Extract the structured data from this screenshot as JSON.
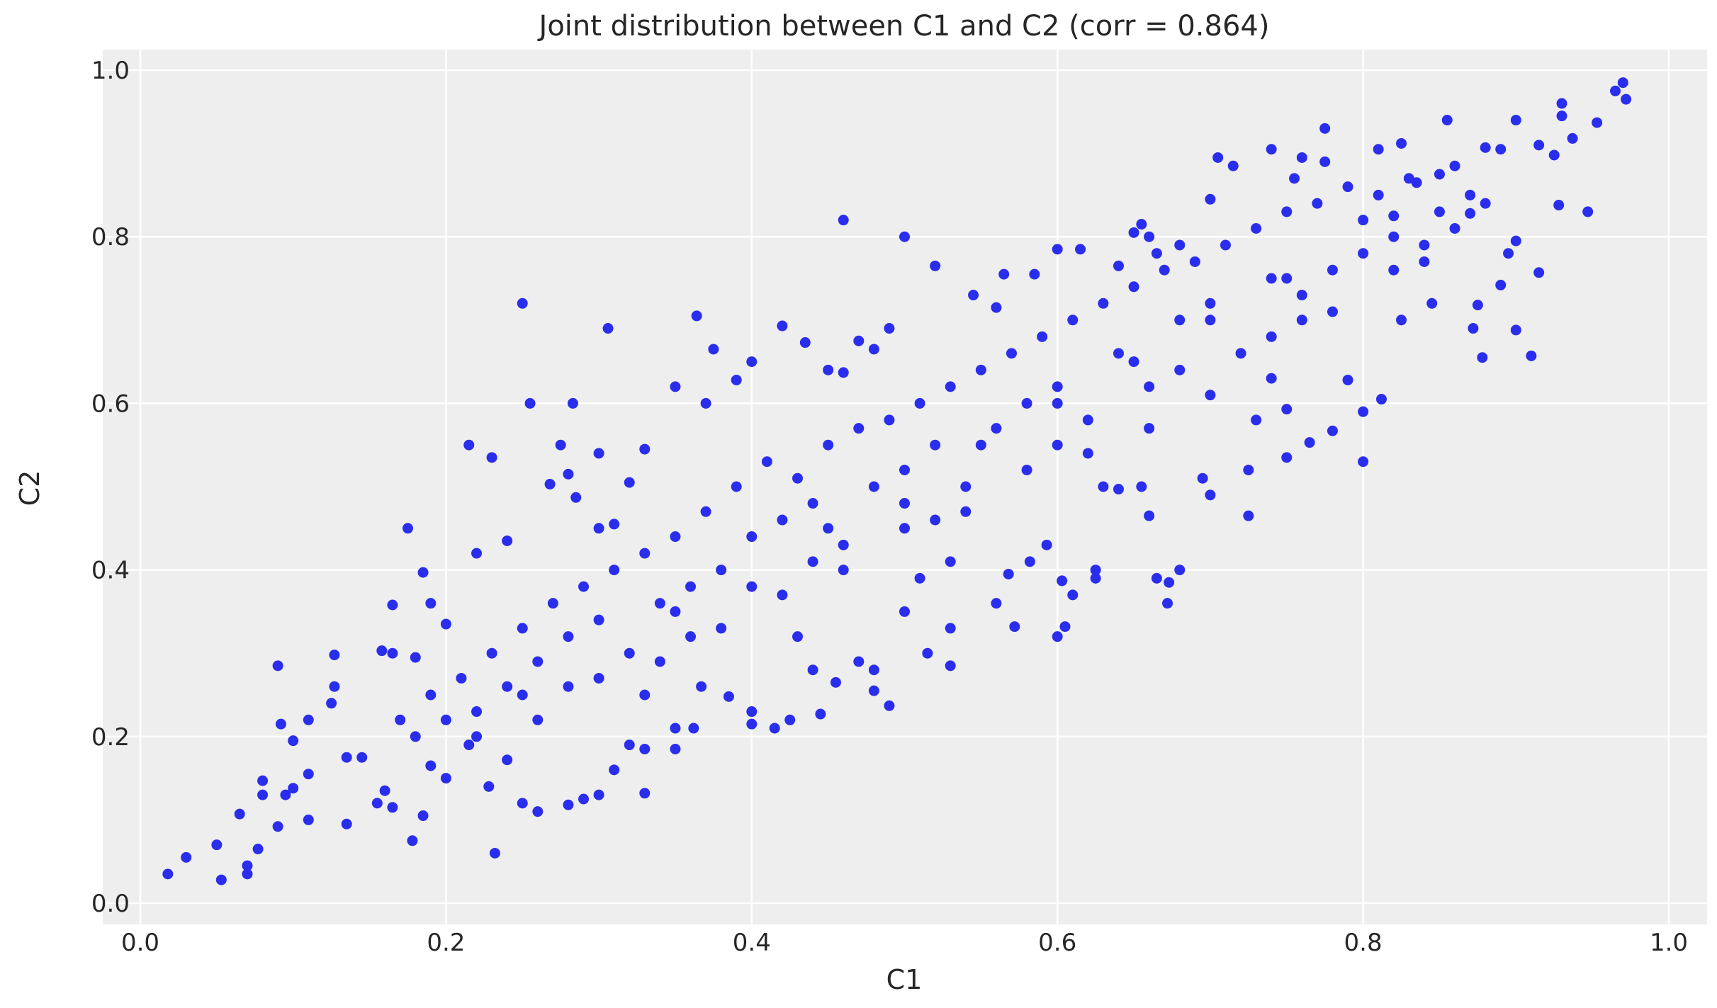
{
  "chart_data": {
    "type": "scatter",
    "title": "Joint distribution between C1 and C2 (corr = 0.864)",
    "xlabel": "C1",
    "ylabel": "C2",
    "xlim": [
      -0.025,
      1.03
    ],
    "ylim": [
      -0.025,
      1.025
    ],
    "xticks": [
      "0.0",
      "0.2",
      "0.4",
      "0.6",
      "0.8",
      "1.0"
    ],
    "yticks": [
      "0.0",
      "0.2",
      "0.4",
      "0.6",
      "0.8",
      "1.0"
    ],
    "grid": true,
    "background": "#eeeeee",
    "marker_color": "#2a2eec",
    "points": [
      [
        0.25,
        0.72
      ],
      [
        0.46,
        0.82
      ],
      [
        0.5,
        0.8
      ],
      [
        0.306,
        0.69
      ],
      [
        0.364,
        0.705
      ],
      [
        0.175,
        0.45
      ],
      [
        0.09,
        0.285
      ],
      [
        0.232,
        0.06
      ],
      [
        0.018,
        0.035
      ],
      [
        0.03,
        0.055
      ],
      [
        0.05,
        0.07
      ],
      [
        0.053,
        0.028
      ],
      [
        0.07,
        0.035
      ],
      [
        0.07,
        0.045
      ],
      [
        0.077,
        0.065
      ],
      [
        0.065,
        0.107
      ],
      [
        0.08,
        0.13
      ],
      [
        0.08,
        0.147
      ],
      [
        0.095,
        0.13
      ],
      [
        0.09,
        0.092
      ],
      [
        0.1,
        0.138
      ],
      [
        0.1,
        0.195
      ],
      [
        0.092,
        0.215
      ],
      [
        0.11,
        0.22
      ],
      [
        0.11,
        0.155
      ],
      [
        0.11,
        0.1
      ],
      [
        0.127,
        0.298
      ],
      [
        0.127,
        0.26
      ],
      [
        0.125,
        0.24
      ],
      [
        0.135,
        0.175
      ],
      [
        0.135,
        0.095
      ],
      [
        0.158,
        0.303
      ],
      [
        0.165,
        0.358
      ],
      [
        0.165,
        0.3
      ],
      [
        0.18,
        0.295
      ],
      [
        0.185,
        0.397
      ],
      [
        0.19,
        0.36
      ],
      [
        0.2,
        0.335
      ],
      [
        0.215,
        0.55
      ],
      [
        0.23,
        0.535
      ],
      [
        0.24,
        0.435
      ],
      [
        0.22,
        0.42
      ],
      [
        0.255,
        0.6
      ],
      [
        0.283,
        0.6
      ],
      [
        0.275,
        0.55
      ],
      [
        0.28,
        0.515
      ],
      [
        0.3,
        0.54
      ],
      [
        0.285,
        0.487
      ],
      [
        0.268,
        0.503
      ],
      [
        0.3,
        0.45
      ],
      [
        0.31,
        0.455
      ],
      [
        0.32,
        0.505
      ],
      [
        0.33,
        0.545
      ],
      [
        0.35,
        0.62
      ],
      [
        0.37,
        0.6
      ],
      [
        0.375,
        0.665
      ],
      [
        0.39,
        0.628
      ],
      [
        0.4,
        0.65
      ],
      [
        0.42,
        0.693
      ],
      [
        0.435,
        0.673
      ],
      [
        0.45,
        0.64
      ],
      [
        0.46,
        0.637
      ],
      [
        0.47,
        0.675
      ],
      [
        0.48,
        0.665
      ],
      [
        0.49,
        0.69
      ],
      [
        0.52,
        0.765
      ],
      [
        0.545,
        0.73
      ],
      [
        0.56,
        0.715
      ],
      [
        0.565,
        0.755
      ],
      [
        0.585,
        0.755
      ],
      [
        0.6,
        0.785
      ],
      [
        0.615,
        0.785
      ],
      [
        0.64,
        0.765
      ],
      [
        0.65,
        0.805
      ],
      [
        0.655,
        0.815
      ],
      [
        0.66,
        0.8
      ],
      [
        0.665,
        0.78
      ],
      [
        0.68,
        0.79
      ],
      [
        0.7,
        0.845
      ],
      [
        0.705,
        0.895
      ],
      [
        0.715,
        0.885
      ],
      [
        0.74,
        0.905
      ],
      [
        0.755,
        0.87
      ],
      [
        0.76,
        0.895
      ],
      [
        0.775,
        0.93
      ],
      [
        0.775,
        0.89
      ],
      [
        0.81,
        0.905
      ],
      [
        0.825,
        0.912
      ],
      [
        0.855,
        0.94
      ],
      [
        0.9,
        0.94
      ],
      [
        0.93,
        0.96
      ],
      [
        0.93,
        0.945
      ],
      [
        0.965,
        0.975
      ],
      [
        0.97,
        0.985
      ],
      [
        0.972,
        0.965
      ],
      [
        0.953,
        0.937
      ],
      [
        0.937,
        0.918
      ],
      [
        0.925,
        0.898
      ],
      [
        0.915,
        0.91
      ],
      [
        0.89,
        0.905
      ],
      [
        0.88,
        0.907
      ],
      [
        0.947,
        0.83
      ],
      [
        0.928,
        0.838
      ],
      [
        0.915,
        0.757
      ],
      [
        0.91,
        0.657
      ],
      [
        0.9,
        0.688
      ],
      [
        0.895,
        0.78
      ],
      [
        0.9,
        0.795
      ],
      [
        0.89,
        0.742
      ],
      [
        0.878,
        0.655
      ],
      [
        0.872,
        0.69
      ],
      [
        0.875,
        0.718
      ],
      [
        0.87,
        0.828
      ],
      [
        0.86,
        0.885
      ],
      [
        0.85,
        0.875
      ],
      [
        0.845,
        0.72
      ],
      [
        0.835,
        0.865
      ],
      [
        0.82,
        0.825
      ],
      [
        0.82,
        0.76
      ],
      [
        0.825,
        0.7
      ],
      [
        0.812,
        0.605
      ],
      [
        0.8,
        0.53
      ],
      [
        0.8,
        0.59
      ],
      [
        0.79,
        0.628
      ],
      [
        0.78,
        0.567
      ],
      [
        0.765,
        0.553
      ],
      [
        0.75,
        0.535
      ],
      [
        0.75,
        0.593
      ],
      [
        0.74,
        0.63
      ],
      [
        0.725,
        0.465
      ],
      [
        0.725,
        0.52
      ],
      [
        0.7,
        0.49
      ],
      [
        0.695,
        0.51
      ],
      [
        0.68,
        0.4
      ],
      [
        0.672,
        0.36
      ],
      [
        0.665,
        0.39
      ],
      [
        0.673,
        0.385
      ],
      [
        0.66,
        0.465
      ],
      [
        0.655,
        0.5
      ],
      [
        0.64,
        0.497
      ],
      [
        0.625,
        0.39
      ],
      [
        0.625,
        0.4
      ],
      [
        0.61,
        0.37
      ],
      [
        0.605,
        0.332
      ],
      [
        0.6,
        0.32
      ],
      [
        0.603,
        0.387
      ],
      [
        0.593,
        0.43
      ],
      [
        0.582,
        0.41
      ],
      [
        0.572,
        0.332
      ],
      [
        0.56,
        0.36
      ],
      [
        0.568,
        0.395
      ],
      [
        0.53,
        0.285
      ],
      [
        0.53,
        0.33
      ],
      [
        0.515,
        0.3
      ],
      [
        0.51,
        0.39
      ],
      [
        0.5,
        0.35
      ],
      [
        0.49,
        0.237
      ],
      [
        0.48,
        0.255
      ],
      [
        0.48,
        0.28
      ],
      [
        0.47,
        0.29
      ],
      [
        0.455,
        0.265
      ],
      [
        0.445,
        0.227
      ],
      [
        0.44,
        0.28
      ],
      [
        0.425,
        0.22
      ],
      [
        0.415,
        0.21
      ],
      [
        0.4,
        0.23
      ],
      [
        0.4,
        0.215
      ],
      [
        0.385,
        0.248
      ],
      [
        0.367,
        0.26
      ],
      [
        0.362,
        0.21
      ],
      [
        0.35,
        0.185
      ],
      [
        0.35,
        0.21
      ],
      [
        0.33,
        0.132
      ],
      [
        0.33,
        0.185
      ],
      [
        0.32,
        0.19
      ],
      [
        0.31,
        0.16
      ],
      [
        0.3,
        0.13
      ],
      [
        0.29,
        0.125
      ],
      [
        0.28,
        0.118
      ],
      [
        0.26,
        0.11
      ],
      [
        0.25,
        0.12
      ],
      [
        0.24,
        0.172
      ],
      [
        0.228,
        0.14
      ],
      [
        0.215,
        0.19
      ],
      [
        0.2,
        0.15
      ],
      [
        0.19,
        0.165
      ],
      [
        0.185,
        0.105
      ],
      [
        0.178,
        0.075
      ],
      [
        0.165,
        0.115
      ],
      [
        0.16,
        0.135
      ],
      [
        0.155,
        0.12
      ],
      [
        0.145,
        0.175
      ],
      [
        0.17,
        0.22
      ],
      [
        0.18,
        0.2
      ],
      [
        0.19,
        0.25
      ],
      [
        0.2,
        0.22
      ],
      [
        0.21,
        0.27
      ],
      [
        0.22,
        0.23
      ],
      [
        0.23,
        0.3
      ],
      [
        0.24,
        0.26
      ],
      [
        0.25,
        0.33
      ],
      [
        0.26,
        0.29
      ],
      [
        0.27,
        0.36
      ],
      [
        0.28,
        0.32
      ],
      [
        0.29,
        0.38
      ],
      [
        0.3,
        0.34
      ],
      [
        0.31,
        0.4
      ],
      [
        0.32,
        0.3
      ],
      [
        0.33,
        0.42
      ],
      [
        0.34,
        0.36
      ],
      [
        0.35,
        0.44
      ],
      [
        0.36,
        0.38
      ],
      [
        0.37,
        0.47
      ],
      [
        0.38,
        0.4
      ],
      [
        0.39,
        0.5
      ],
      [
        0.4,
        0.44
      ],
      [
        0.41,
        0.53
      ],
      [
        0.42,
        0.46
      ],
      [
        0.43,
        0.51
      ],
      [
        0.44,
        0.48
      ],
      [
        0.45,
        0.55
      ],
      [
        0.46,
        0.43
      ],
      [
        0.47,
        0.57
      ],
      [
        0.48,
        0.5
      ],
      [
        0.49,
        0.58
      ],
      [
        0.5,
        0.52
      ],
      [
        0.51,
        0.6
      ],
      [
        0.52,
        0.55
      ],
      [
        0.53,
        0.62
      ],
      [
        0.54,
        0.5
      ],
      [
        0.55,
        0.64
      ],
      [
        0.56,
        0.57
      ],
      [
        0.57,
        0.66
      ],
      [
        0.58,
        0.6
      ],
      [
        0.59,
        0.68
      ],
      [
        0.6,
        0.62
      ],
      [
        0.61,
        0.7
      ],
      [
        0.62,
        0.58
      ],
      [
        0.63,
        0.72
      ],
      [
        0.64,
        0.66
      ],
      [
        0.65,
        0.74
      ],
      [
        0.66,
        0.62
      ],
      [
        0.67,
        0.76
      ],
      [
        0.68,
        0.7
      ],
      [
        0.69,
        0.77
      ],
      [
        0.7,
        0.72
      ],
      [
        0.71,
        0.79
      ],
      [
        0.72,
        0.66
      ],
      [
        0.73,
        0.81
      ],
      [
        0.74,
        0.75
      ],
      [
        0.75,
        0.83
      ],
      [
        0.76,
        0.73
      ],
      [
        0.77,
        0.84
      ],
      [
        0.78,
        0.76
      ],
      [
        0.79,
        0.86
      ],
      [
        0.8,
        0.78
      ],
      [
        0.81,
        0.85
      ],
      [
        0.82,
        0.8
      ],
      [
        0.83,
        0.87
      ],
      [
        0.84,
        0.79
      ],
      [
        0.85,
        0.83
      ],
      [
        0.86,
        0.81
      ],
      [
        0.87,
        0.85
      ],
      [
        0.88,
        0.84
      ],
      [
        0.3,
        0.27
      ],
      [
        0.34,
        0.29
      ],
      [
        0.38,
        0.33
      ],
      [
        0.42,
        0.37
      ],
      [
        0.46,
        0.4
      ],
      [
        0.5,
        0.45
      ],
      [
        0.54,
        0.47
      ],
      [
        0.58,
        0.52
      ],
      [
        0.62,
        0.54
      ],
      [
        0.66,
        0.57
      ],
      [
        0.7,
        0.61
      ],
      [
        0.74,
        0.68
      ],
      [
        0.78,
        0.71
      ],
      [
        0.26,
        0.22
      ],
      [
        0.22,
        0.2
      ],
      [
        0.28,
        0.26
      ],
      [
        0.36,
        0.32
      ],
      [
        0.44,
        0.41
      ],
      [
        0.52,
        0.46
      ],
      [
        0.6,
        0.55
      ],
      [
        0.68,
        0.64
      ],
      [
        0.76,
        0.7
      ],
      [
        0.84,
        0.77
      ],
      [
        0.35,
        0.35
      ],
      [
        0.45,
        0.45
      ],
      [
        0.55,
        0.55
      ],
      [
        0.65,
        0.65
      ],
      [
        0.75,
        0.75
      ],
      [
        0.25,
        0.25
      ],
      [
        0.4,
        0.38
      ],
      [
        0.5,
        0.48
      ],
      [
        0.6,
        0.6
      ],
      [
        0.7,
        0.7
      ],
      [
        0.8,
        0.82
      ],
      [
        0.33,
        0.25
      ],
      [
        0.43,
        0.32
      ],
      [
        0.53,
        0.41
      ],
      [
        0.63,
        0.5
      ],
      [
        0.73,
        0.58
      ]
    ]
  }
}
